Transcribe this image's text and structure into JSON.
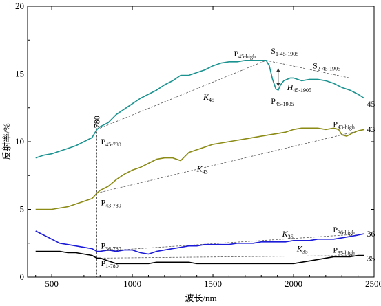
{
  "chart_data": {
    "type": "line",
    "xlabel": "波长/nm",
    "ylabel": "反射率/%",
    "xlim": [
      350,
      2500
    ],
    "ylim": [
      0,
      20
    ],
    "xticks": [
      500,
      1000,
      1500,
      2000,
      2500
    ],
    "yticks": [
      0,
      5,
      10,
      15,
      20
    ],
    "grid": false,
    "marker_line_label": "780",
    "series": [
      {
        "name": "45",
        "color": "#1a9390",
        "x": [
          400,
          450,
          500,
          550,
          600,
          650,
          700,
          750,
          780,
          800,
          850,
          900,
          950,
          1000,
          1050,
          1100,
          1150,
          1200,
          1250,
          1300,
          1350,
          1400,
          1450,
          1500,
          1550,
          1600,
          1650,
          1700,
          1750,
          1800,
          1830,
          1850,
          1870,
          1890,
          1905,
          1920,
          1940,
          1960,
          1980,
          2000,
          2050,
          2100,
          2150,
          2200,
          2250,
          2300,
          2350,
          2400,
          2440
        ],
        "y": [
          8.8,
          9.0,
          9.1,
          9.3,
          9.5,
          9.7,
          10.0,
          10.3,
          10.9,
          11.1,
          11.4,
          12.0,
          12.4,
          12.8,
          13.2,
          13.5,
          13.8,
          14.2,
          14.5,
          14.9,
          14.9,
          15.1,
          15.3,
          15.6,
          15.8,
          15.9,
          15.9,
          16.0,
          16.0,
          16.0,
          16.0,
          15.6,
          14.6,
          13.9,
          13.8,
          14.2,
          14.5,
          14.6,
          14.7,
          14.7,
          14.5,
          14.6,
          14.6,
          14.5,
          14.3,
          14.0,
          13.8,
          13.5,
          13.2
        ]
      },
      {
        "name": "43",
        "color": "#8b8b16",
        "x": [
          400,
          450,
          500,
          550,
          600,
          650,
          700,
          750,
          780,
          800,
          850,
          900,
          950,
          1000,
          1050,
          1100,
          1150,
          1200,
          1250,
          1300,
          1350,
          1400,
          1450,
          1500,
          1550,
          1600,
          1650,
          1700,
          1750,
          1800,
          1850,
          1900,
          1950,
          2000,
          2050,
          2100,
          2150,
          2200,
          2250,
          2280,
          2300,
          2330,
          2360,
          2400,
          2440
        ],
        "y": [
          5.0,
          5.0,
          5.0,
          5.1,
          5.2,
          5.4,
          5.6,
          5.8,
          6.2,
          6.4,
          6.7,
          7.2,
          7.6,
          7.9,
          8.1,
          8.4,
          8.7,
          8.8,
          8.8,
          8.6,
          9.2,
          9.4,
          9.6,
          9.8,
          9.9,
          10.0,
          10.1,
          10.2,
          10.3,
          10.4,
          10.5,
          10.6,
          10.7,
          10.9,
          11.0,
          11.0,
          11.0,
          10.9,
          11.0,
          10.9,
          10.5,
          10.4,
          10.6,
          10.8,
          10.9
        ]
      },
      {
        "name": "36",
        "color": "#1a1ad8",
        "x": [
          400,
          450,
          500,
          550,
          600,
          650,
          700,
          750,
          780,
          800,
          850,
          900,
          950,
          1000,
          1050,
          1100,
          1150,
          1200,
          1250,
          1300,
          1350,
          1400,
          1450,
          1500,
          1550,
          1600,
          1650,
          1700,
          1750,
          1800,
          1850,
          1900,
          1950,
          2000,
          2050,
          2100,
          2150,
          2200,
          2250,
          2300,
          2350,
          2400,
          2440
        ],
        "y": [
          3.4,
          3.1,
          2.8,
          2.5,
          2.4,
          2.3,
          2.2,
          2.1,
          1.9,
          1.9,
          2.0,
          1.9,
          2.0,
          2.0,
          1.8,
          1.7,
          1.9,
          2.0,
          2.1,
          2.2,
          2.3,
          2.3,
          2.4,
          2.4,
          2.4,
          2.4,
          2.5,
          2.5,
          2.5,
          2.6,
          2.6,
          2.6,
          2.6,
          2.7,
          2.7,
          2.7,
          2.8,
          2.8,
          2.8,
          2.9,
          3.0,
          3.1,
          3.2
        ]
      },
      {
        "name": "35",
        "color": "#000000",
        "x": [
          400,
          450,
          500,
          550,
          600,
          650,
          700,
          750,
          780,
          800,
          850,
          900,
          950,
          1000,
          1050,
          1100,
          1150,
          1200,
          1250,
          1300,
          1350,
          1400,
          1450,
          1500,
          1550,
          1600,
          1650,
          1700,
          1750,
          1800,
          1850,
          1900,
          1950,
          2000,
          2050,
          2100,
          2150,
          2200,
          2250,
          2300,
          2350,
          2400,
          2440
        ],
        "y": [
          1.9,
          1.9,
          1.9,
          1.9,
          1.8,
          1.8,
          1.7,
          1.6,
          1.4,
          1.4,
          1.2,
          1.0,
          1.0,
          1.0,
          1.0,
          1.0,
          1.1,
          1.1,
          1.1,
          1.1,
          1.1,
          1.0,
          1.0,
          1.0,
          1.0,
          1.0,
          1.0,
          1.0,
          1.0,
          1.0,
          1.0,
          1.0,
          1.0,
          1.0,
          1.1,
          1.2,
          1.3,
          1.4,
          1.5,
          1.5,
          1.5,
          1.6,
          1.6
        ]
      }
    ],
    "reference_lines": [
      {
        "name": "K45",
        "x": [
          780,
          1830
        ],
        "y": [
          10.9,
          16.0
        ]
      },
      {
        "name": "H45-1905",
        "x": [
          1830,
          2350
        ],
        "y": [
          16.0,
          14.7
        ]
      },
      {
        "name": "K43",
        "x": [
          780,
          2440
        ],
        "y": [
          6.2,
          10.9
        ]
      },
      {
        "name": "K36",
        "x": [
          780,
          2440
        ],
        "y": [
          1.9,
          3.2
        ]
      },
      {
        "name": "K35",
        "x": [
          780,
          2440
        ],
        "y": [
          1.4,
          1.6
        ]
      }
    ],
    "annotations": [
      {
        "id": "p45high",
        "parts": [
          "P",
          "45-high"
        ],
        "x": 1630,
        "y": 16.3
      },
      {
        "id": "s145",
        "parts": [
          "S",
          "1-45-1905"
        ],
        "x": 1860,
        "y": 16.5
      },
      {
        "id": "s245",
        "parts": [
          "S",
          "2-45-1905"
        ],
        "x": 2120,
        "y": 15.4
      },
      {
        "id": "h45",
        "parts": [
          "H",
          "45-1905"
        ],
        "x": 1960,
        "y": 13.8,
        "italic": true
      },
      {
        "id": "p451905",
        "parts": [
          "P",
          "45-1905"
        ],
        "x": 1860,
        "y": 12.8
      },
      {
        "id": "k45",
        "parts": [
          "K",
          "45"
        ],
        "x": 1440,
        "y": 13.1,
        "italic": true
      },
      {
        "id": "p45780",
        "parts": [
          "P",
          "45-780"
        ],
        "x": 805,
        "y": 9.8
      },
      {
        "id": "label45",
        "parts": [
          "45",
          ""
        ],
        "x": 2455,
        "y": 12.6
      },
      {
        "id": "p43high",
        "parts": [
          "P",
          "43-high"
        ],
        "x": 2245,
        "y": 11.1
      },
      {
        "id": "label43",
        "parts": [
          "43",
          ""
        ],
        "x": 2455,
        "y": 10.7
      },
      {
        "id": "k43",
        "parts": [
          "K",
          "43"
        ],
        "x": 1400,
        "y": 7.8,
        "italic": true
      },
      {
        "id": "p43780",
        "parts": [
          "P",
          "43-780"
        ],
        "x": 805,
        "y": 5.3
      },
      {
        "id": "k36",
        "parts": [
          "K",
          "36"
        ],
        "x": 1930,
        "y": 3.0,
        "italic": true
      },
      {
        "id": "p36high",
        "parts": [
          "P",
          "36-high"
        ],
        "x": 2245,
        "y": 3.3
      },
      {
        "id": "label36",
        "parts": [
          "36",
          ""
        ],
        "x": 2455,
        "y": 3.0
      },
      {
        "id": "p36780",
        "parts": [
          "P",
          "36-780"
        ],
        "x": 805,
        "y": 2.1
      },
      {
        "id": "k35",
        "parts": [
          "K",
          "35"
        ],
        "x": 2020,
        "y": 1.9,
        "italic": true
      },
      {
        "id": "p35high",
        "parts": [
          "P",
          "35-high"
        ],
        "x": 2245,
        "y": 1.8
      },
      {
        "id": "label35",
        "parts": [
          "35",
          ""
        ],
        "x": 2455,
        "y": 1.2
      },
      {
        "id": "p1780",
        "parts": [
          "P",
          "1-780"
        ],
        "x": 805,
        "y": 0.8
      }
    ]
  }
}
